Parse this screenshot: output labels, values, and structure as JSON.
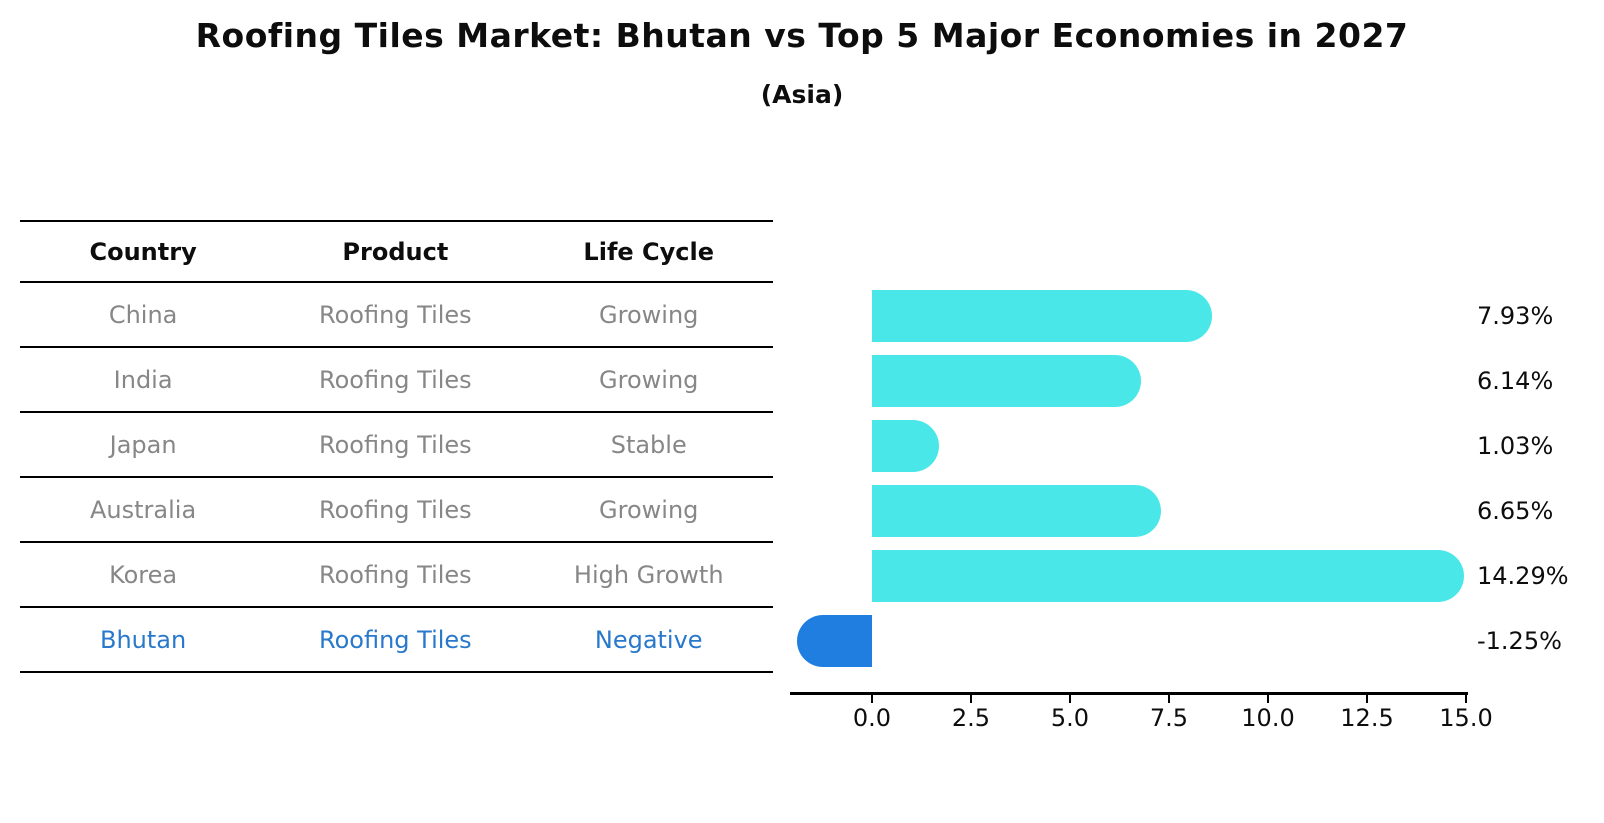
{
  "title": "Roofing Tiles Market: Bhutan vs Top 5 Major Economies in 2027",
  "subtitle": "(Asia)",
  "table": {
    "headers": [
      "Country",
      "Product",
      "Life Cycle"
    ],
    "rows": [
      {
        "country": "China",
        "product": "Roofing Tiles",
        "life_cycle": "Growing",
        "highlight": false
      },
      {
        "country": "India",
        "product": "Roofing Tiles",
        "life_cycle": "Growing",
        "highlight": false
      },
      {
        "country": "Japan",
        "product": "Roofing Tiles",
        "life_cycle": "Stable",
        "highlight": false
      },
      {
        "country": "Australia",
        "product": "Roofing Tiles",
        "life_cycle": "Growing",
        "highlight": false
      },
      {
        "country": "Korea",
        "product": "Roofing Tiles",
        "life_cycle": "High Growth",
        "highlight": false
      },
      {
        "country": "Bhutan",
        "product": "Roofing Tiles",
        "life_cycle": "Negative",
        "highlight": true
      }
    ]
  },
  "chart_data": {
    "type": "bar",
    "orientation": "horizontal",
    "title": "Roofing Tiles Market: Bhutan vs Top 5 Major Economies in 2027",
    "subtitle": "(Asia)",
    "categories": [
      "China",
      "India",
      "Japan",
      "Australia",
      "Korea",
      "Bhutan"
    ],
    "values": [
      7.93,
      6.14,
      1.03,
      6.65,
      14.29,
      -1.25
    ],
    "value_labels": [
      "7.93%",
      "6.14%",
      "1.03%",
      "6.65%",
      "14.29%",
      "-1.25%"
    ],
    "x_ticks": [
      0.0,
      2.5,
      5.0,
      7.5,
      10.0,
      12.5,
      15.0
    ],
    "x_tick_labels": [
      "0.0",
      "2.5",
      "5.0",
      "7.5",
      "10.0",
      "12.5",
      "15.0"
    ],
    "xlim": [
      -2.1,
      15.0
    ],
    "grid": false,
    "legend": false,
    "bar_color": "#4AE7E9",
    "highlight_color": "#1F7EE0",
    "highlight_index": 5,
    "highlight_style": "dotted-edge"
  },
  "colors": {
    "background": "#ffffff",
    "text": "#0d0d0d",
    "table_text": "#878787",
    "table_highlight_text": "#2878CB",
    "axis": "#000000"
  }
}
